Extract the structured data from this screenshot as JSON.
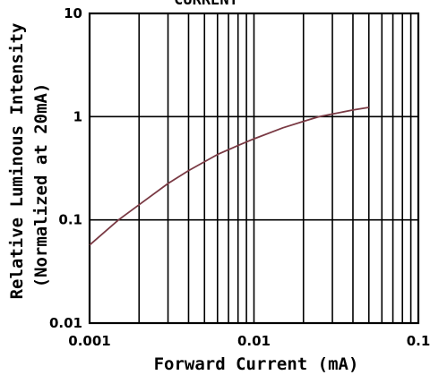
{
  "chart_data": {
    "type": "line",
    "title": "CURRENT",
    "xlabel": "Forward Current (mA)",
    "ylabel_lines": [
      "Relative Luminous Intensity",
      "(Normalized at 20mA)"
    ],
    "x_scale": "log",
    "y_scale": "log",
    "xlim": [
      0.001,
      0.1
    ],
    "ylim": [
      0.01,
      10
    ],
    "x_ticks": [
      {
        "value": 0.001,
        "label": "0.001"
      },
      {
        "value": 0.01,
        "label": "0.01"
      },
      {
        "value": 0.1,
        "label": "0.1"
      }
    ],
    "y_ticks": [
      {
        "value": 10,
        "label": "10"
      },
      {
        "value": 1,
        "label": "1"
      },
      {
        "value": 0.1,
        "label": "0.1"
      },
      {
        "value": 0.01,
        "label": "0.01"
      }
    ],
    "grid": true,
    "series": [
      {
        "color": "#7a3a44",
        "x": [
          0.001,
          0.0015,
          0.002,
          0.003,
          0.004,
          0.006,
          0.008,
          0.01,
          0.015,
          0.02,
          0.025,
          0.03,
          0.04,
          0.05
        ],
        "y": [
          0.057,
          0.1,
          0.14,
          0.225,
          0.3,
          0.43,
          0.525,
          0.61,
          0.78,
          0.9,
          1.0,
          1.06,
          1.16,
          1.23
        ]
      }
    ]
  }
}
